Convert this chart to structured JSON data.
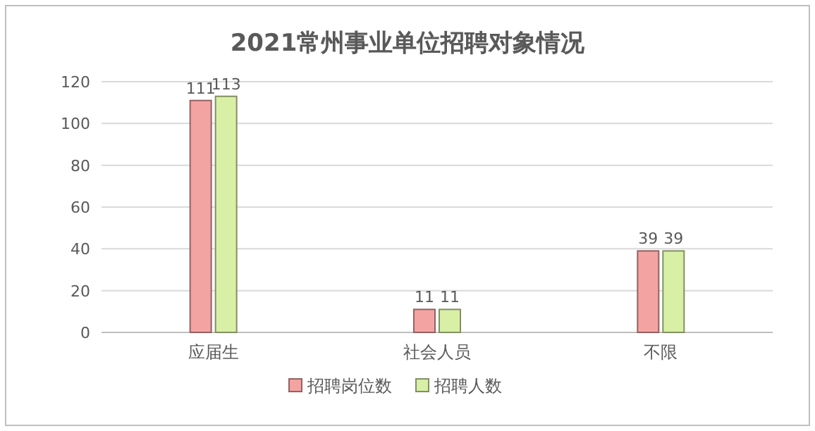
{
  "chart_data": {
    "type": "bar",
    "title": "2021常州事业单位招聘对象情况",
    "categories": [
      "应届生",
      "社会人员",
      "不限"
    ],
    "series": [
      {
        "name": "招聘岗位数",
        "color": "#f4a3a3",
        "values": [
          111,
          11,
          39
        ]
      },
      {
        "name": "招聘人数",
        "color": "#d8efa6",
        "values": [
          113,
          11,
          39
        ]
      }
    ],
    "ylim": [
      0,
      120
    ],
    "yticks": [
      0,
      20,
      40,
      60,
      80,
      100,
      120
    ],
    "grid": "y",
    "legend": "bottom",
    "data_labels": true
  }
}
